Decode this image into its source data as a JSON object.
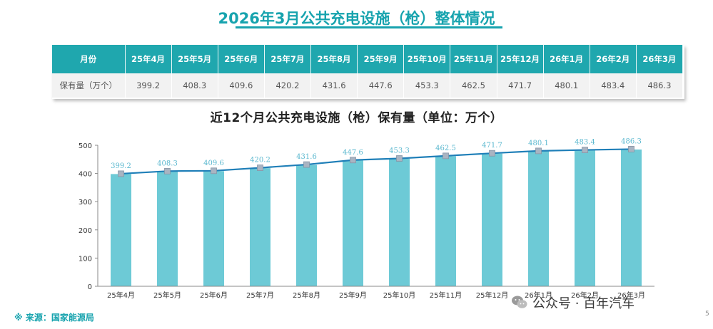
{
  "header": {
    "title": "2026年3月公共充电设施（枪）整体情况"
  },
  "table": {
    "row_header_month": "月份",
    "row_header_value": "保有量（万个）",
    "months": [
      "25年4月",
      "25年5月",
      "25年6月",
      "25年7月",
      "25年8月",
      "25年9月",
      "25年10月",
      "25年11月",
      "25年12月",
      "26年1月",
      "26年2月",
      "26年3月"
    ],
    "values": [
      "399.2",
      "408.3",
      "409.6",
      "420.2",
      "431.6",
      "447.6",
      "453.3",
      "462.5",
      "471.7",
      "480.1",
      "483.4",
      "486.3"
    ]
  },
  "chart_data": {
    "type": "bar",
    "title": "近12个月公共充电设施（枪）保有量（单位：万个）",
    "categories": [
      "25年4月",
      "25年5月",
      "25年6月",
      "25年7月",
      "25年8月",
      "25年9月",
      "25年10月",
      "25年11月",
      "25年12月",
      "26年1月",
      "26年2月",
      "26年3月"
    ],
    "series": [
      {
        "values": [
          399.2,
          408.3,
          409.6,
          420.2,
          431.6,
          447.6,
          453.3,
          462.5,
          471.7,
          480.1,
          483.4,
          486.3
        ]
      }
    ],
    "overlay_line": true,
    "ylim": [
      0,
      500
    ],
    "yticks": [
      0,
      100,
      200,
      300,
      400,
      500
    ],
    "xlabel": "",
    "ylabel": "",
    "grid": false,
    "colors": {
      "bar": "#6dcad6",
      "bar_edge": "#ffffff",
      "line": "#1f7fb8",
      "marker": "#a9b4c2",
      "label": "#5bb8cf"
    }
  },
  "footer": {
    "source": "※ 来源：国家能源局",
    "credit": "公众号 · 百年汽车",
    "credit_icon": "wechat-icon",
    "page_number": "5"
  },
  "colors": {
    "accent": "#17a3ae",
    "table_header": "#1fa7ae",
    "table_row": "#f2f2f2"
  }
}
